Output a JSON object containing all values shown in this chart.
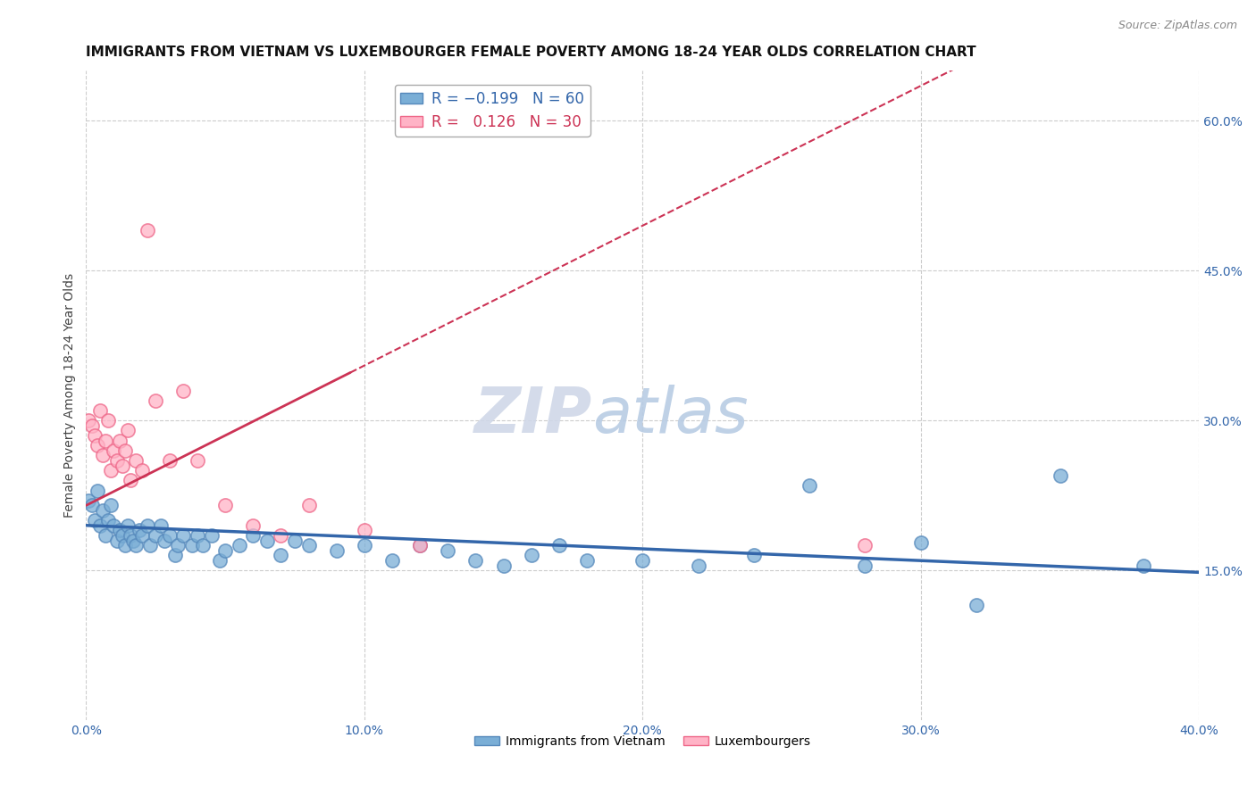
{
  "title": "IMMIGRANTS FROM VIETNAM VS LUXEMBOURGER FEMALE POVERTY AMONG 18-24 YEAR OLDS CORRELATION CHART",
  "source": "Source: ZipAtlas.com",
  "ylabel": "Female Poverty Among 18-24 Year Olds",
  "xlim": [
    0.0,
    0.4
  ],
  "ylim": [
    0.0,
    0.65
  ],
  "xtick_labels": [
    "0.0%",
    "10.0%",
    "20.0%",
    "30.0%",
    "40.0%"
  ],
  "xtick_values": [
    0.0,
    0.1,
    0.2,
    0.3,
    0.4
  ],
  "ytick_labels_right": [
    "15.0%",
    "30.0%",
    "45.0%",
    "60.0%"
  ],
  "ytick_values_right": [
    0.15,
    0.3,
    0.45,
    0.6
  ],
  "grid_color": "#cccccc",
  "background_color": "#ffffff",
  "series": [
    {
      "name": "Immigrants from Vietnam",
      "color": "#7aaed6",
      "edge_color": "#5588bb",
      "R": -0.199,
      "N": 60,
      "x": [
        0.001,
        0.002,
        0.003,
        0.004,
        0.005,
        0.006,
        0.007,
        0.008,
        0.009,
        0.01,
        0.011,
        0.012,
        0.013,
        0.014,
        0.015,
        0.016,
        0.017,
        0.018,
        0.019,
        0.02,
        0.022,
        0.023,
        0.025,
        0.027,
        0.028,
        0.03,
        0.032,
        0.033,
        0.035,
        0.038,
        0.04,
        0.042,
        0.045,
        0.048,
        0.05,
        0.055,
        0.06,
        0.065,
        0.07,
        0.075,
        0.08,
        0.09,
        0.1,
        0.11,
        0.12,
        0.13,
        0.14,
        0.15,
        0.16,
        0.17,
        0.18,
        0.2,
        0.22,
        0.24,
        0.26,
        0.28,
        0.3,
        0.32,
        0.35,
        0.38
      ],
      "y": [
        0.22,
        0.215,
        0.2,
        0.23,
        0.195,
        0.21,
        0.185,
        0.2,
        0.215,
        0.195,
        0.18,
        0.19,
        0.185,
        0.175,
        0.195,
        0.185,
        0.18,
        0.175,
        0.19,
        0.185,
        0.195,
        0.175,
        0.185,
        0.195,
        0.18,
        0.185,
        0.165,
        0.175,
        0.185,
        0.175,
        0.185,
        0.175,
        0.185,
        0.16,
        0.17,
        0.175,
        0.185,
        0.18,
        0.165,
        0.18,
        0.175,
        0.17,
        0.175,
        0.16,
        0.175,
        0.17,
        0.16,
        0.155,
        0.165,
        0.175,
        0.16,
        0.16,
        0.155,
        0.165,
        0.235,
        0.155,
        0.178,
        0.115,
        0.245,
        0.155
      ]
    },
    {
      "name": "Luxembourgers",
      "color": "#ffb3c6",
      "edge_color": "#ee6688",
      "R": 0.126,
      "N": 30,
      "x": [
        0.001,
        0.002,
        0.003,
        0.004,
        0.005,
        0.006,
        0.007,
        0.008,
        0.009,
        0.01,
        0.011,
        0.012,
        0.013,
        0.014,
        0.015,
        0.016,
        0.018,
        0.02,
        0.022,
        0.025,
        0.03,
        0.035,
        0.04,
        0.05,
        0.06,
        0.07,
        0.08,
        0.1,
        0.12,
        0.28
      ],
      "y": [
        0.3,
        0.295,
        0.285,
        0.275,
        0.31,
        0.265,
        0.28,
        0.3,
        0.25,
        0.27,
        0.26,
        0.28,
        0.255,
        0.27,
        0.29,
        0.24,
        0.26,
        0.25,
        0.49,
        0.32,
        0.26,
        0.33,
        0.26,
        0.215,
        0.195,
        0.185,
        0.215,
        0.19,
        0.175,
        0.175
      ]
    }
  ],
  "trend_blue_start": 0.195,
  "trend_blue_end": 0.148,
  "trend_pink_start": 0.215,
  "trend_pink_end": 0.355,
  "trend_pink_extend_end": 0.38,
  "watermark_zip": "ZIP",
  "watermark_atlas": "atlas",
  "title_fontsize": 11,
  "axis_label_fontsize": 10,
  "tick_fontsize": 10,
  "legend_fontsize": 12
}
